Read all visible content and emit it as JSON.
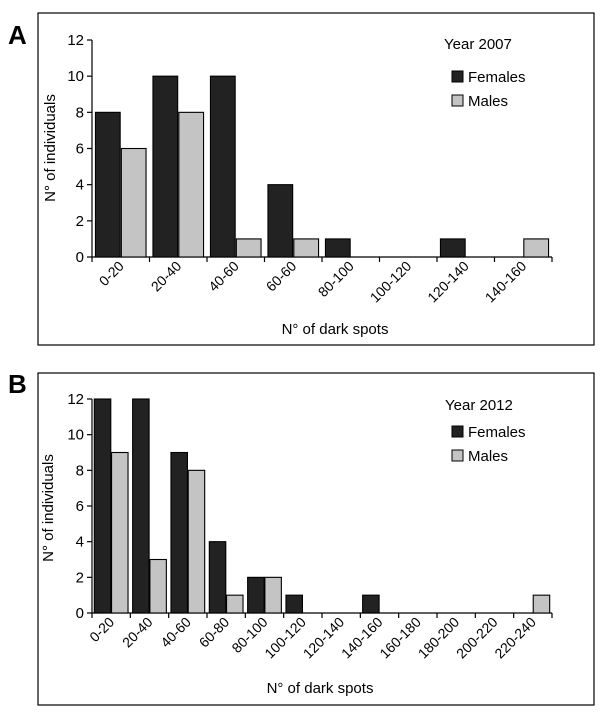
{
  "colors": {
    "females": "#222222",
    "males": "#c4c4c4",
    "axis": "#000000",
    "frame": "#000000",
    "background": "#ffffff"
  },
  "chart_data": [
    {
      "panel_letter": "A",
      "type": "bar",
      "annotation": "Year 2007",
      "xlabel": "N° of dark spots",
      "ylabel": "N° of individuals",
      "ylim": [
        0,
        12
      ],
      "yticks": [
        0,
        2,
        4,
        6,
        8,
        10,
        12
      ],
      "categories": [
        "0-20",
        "20-40",
        "40-60",
        "60-60",
        "80-100",
        "100-120",
        "120-140",
        "140-160"
      ],
      "series": [
        {
          "name": "Females",
          "values": [
            8,
            10,
            10,
            4,
            1,
            0,
            1,
            0
          ]
        },
        {
          "name": "Males",
          "values": [
            6,
            8,
            1,
            1,
            0,
            0,
            0,
            1
          ]
        }
      ],
      "grid": false,
      "legend": "top-right"
    },
    {
      "panel_letter": "B",
      "type": "bar",
      "annotation": "Year 2012",
      "xlabel": "N° of dark spots",
      "ylabel": "N° of individuals",
      "ylim": [
        0,
        12
      ],
      "yticks": [
        0,
        2,
        4,
        6,
        8,
        10,
        12
      ],
      "categories": [
        "0-20",
        "20-40",
        "40-60",
        "60-80",
        "80-100",
        "100-120",
        "120-140",
        "140-160",
        "160-180",
        "180-200",
        "200-220",
        "220-240"
      ],
      "series": [
        {
          "name": "Females",
          "values": [
            12,
            12,
            9,
            4,
            2,
            1,
            0,
            1,
            0,
            0,
            0,
            0
          ]
        },
        {
          "name": "Males",
          "values": [
            9,
            3,
            8,
            1,
            2,
            0,
            0,
            0,
            0,
            0,
            0,
            1
          ]
        }
      ],
      "grid": false,
      "legend": "top-right"
    }
  ]
}
